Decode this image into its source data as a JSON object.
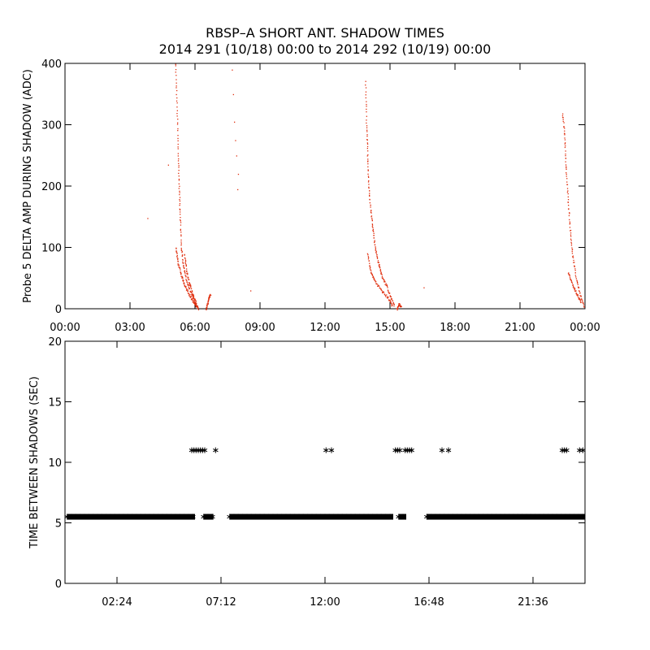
{
  "title": "RBSP–A SHORT ANT. SHADOW TIMES",
  "subtitle": "2014 291 (10/18) 00:00 to 2014 292 (10/19) 00:00",
  "colors": {
    "top_series": "#e03010",
    "bottom_series": "#000000",
    "axes": "#000000"
  },
  "chart_data": [
    {
      "type": "scatter",
      "ylabel": "Probe 5 DELTA AMP DURING SHADOW (ADC)",
      "xlabel": "",
      "x_unit": "hours since 2014-10-18 00:00",
      "xlim": [
        0,
        24
      ],
      "ylim": [
        0,
        400
      ],
      "x_ticks": [
        {
          "v": 0,
          "label": "00:00"
        },
        {
          "v": 3,
          "label": "03:00"
        },
        {
          "v": 6,
          "label": "06:00"
        },
        {
          "v": 9,
          "label": "09:00"
        },
        {
          "v": 12,
          "label": "12:00"
        },
        {
          "v": 15,
          "label": "15:00"
        },
        {
          "v": 18,
          "label": "18:00"
        },
        {
          "v": 21,
          "label": "21:00"
        },
        {
          "v": 24,
          "label": "00:00"
        }
      ],
      "y_ticks": [
        0,
        100,
        200,
        300,
        400
      ],
      "series": [
        {
          "marker": "dot",
          "segments": [
            [
              [
                5.08,
                400
              ],
              [
                5.15,
                330
              ],
              [
                5.2,
                260
              ],
              [
                5.25,
                200
              ],
              [
                5.3,
                150
              ],
              [
                5.35,
                100
              ],
              [
                5.45,
                70
              ],
              [
                5.6,
                45
              ],
              [
                5.8,
                25
              ],
              [
                6.0,
                10
              ],
              [
                6.15,
                0
              ]
            ],
            [
              [
                5.1,
                100
              ],
              [
                5.2,
                75
              ],
              [
                5.35,
                55
              ],
              [
                5.5,
                40
              ],
              [
                5.7,
                25
              ],
              [
                5.9,
                12
              ],
              [
                6.05,
                3
              ]
            ],
            [
              [
                5.5,
                90
              ],
              [
                5.6,
                60
              ],
              [
                5.75,
                40
              ],
              [
                5.9,
                22
              ],
              [
                6.05,
                8
              ]
            ],
            [
              [
                6.5,
                0
              ],
              [
                6.55,
                8
              ],
              [
                6.62,
                18
              ],
              [
                6.7,
                25
              ]
            ],
            [
              [
                13.85,
                370
              ],
              [
                13.9,
                300
              ],
              [
                13.95,
                250
              ],
              [
                14.0,
                200
              ],
              [
                14.1,
                160
              ],
              [
                14.2,
                130
              ],
              [
                14.3,
                100
              ],
              [
                14.45,
                75
              ],
              [
                14.6,
                55
              ],
              [
                14.8,
                40
              ],
              [
                15.0,
                20
              ],
              [
                15.2,
                5
              ]
            ],
            [
              [
                13.95,
                90
              ],
              [
                14.1,
                60
              ],
              [
                14.3,
                45
              ],
              [
                14.6,
                30
              ],
              [
                14.9,
                18
              ],
              [
                15.1,
                5
              ]
            ],
            [
              [
                15.3,
                0
              ],
              [
                15.4,
                8
              ],
              [
                15.5,
                3
              ]
            ],
            [
              [
                22.95,
                320
              ],
              [
                23.05,
                280
              ],
              [
                23.1,
                230
              ],
              [
                23.2,
                180
              ],
              [
                23.3,
                130
              ],
              [
                23.4,
                90
              ],
              [
                23.55,
                55
              ],
              [
                23.75,
                25
              ],
              [
                23.95,
                3
              ]
            ],
            [
              [
                23.2,
                60
              ],
              [
                23.4,
                40
              ],
              [
                23.6,
                25
              ],
              [
                23.8,
                10
              ]
            ]
          ],
          "points": [
            [
              3.8,
              148
            ],
            [
              4.75,
              235
            ],
            [
              7.7,
              390
            ],
            [
              7.75,
              350
            ],
            [
              7.8,
              305
            ],
            [
              7.85,
              275
            ],
            [
              7.9,
              250
            ],
            [
              7.95,
              195
            ],
            [
              7.98,
              220
            ],
            [
              8.55,
              30
            ],
            [
              16.55,
              35
            ]
          ]
        }
      ]
    },
    {
      "type": "scatter",
      "ylabel": "TIME BETWEEN SHADOWS (SEC)",
      "xlabel": "",
      "x_unit": "hours since 2014-10-18 00:00",
      "xlim": [
        0,
        24
      ],
      "ylim": [
        0,
        20
      ],
      "x_ticks": [
        {
          "v": 2.4,
          "label": "02:24"
        },
        {
          "v": 7.2,
          "label": "07:12"
        },
        {
          "v": 12.0,
          "label": "12:00"
        },
        {
          "v": 16.8,
          "label": "16:48"
        },
        {
          "v": 21.6,
          "label": "21:36"
        }
      ],
      "y_ticks": [
        0,
        5,
        10,
        15,
        20
      ],
      "series": [
        {
          "marker": "asterisk",
          "baseline_value": 5.5,
          "baseline_ranges": [
            [
              0.1,
              6.0
            ],
            [
              6.4,
              6.85
            ],
            [
              7.6,
              15.15
            ],
            [
              15.4,
              15.75
            ],
            [
              16.7,
              24.0
            ]
          ],
          "high_value": 11,
          "high_points": [
            5.85,
            5.95,
            6.05,
            6.15,
            6.25,
            6.35,
            6.45,
            6.95,
            12.05,
            12.3,
            15.25,
            15.35,
            15.45,
            15.7,
            15.8,
            15.9,
            16.0,
            17.4,
            17.7,
            22.95,
            23.05,
            23.15,
            23.75,
            23.9
          ]
        }
      ]
    }
  ]
}
